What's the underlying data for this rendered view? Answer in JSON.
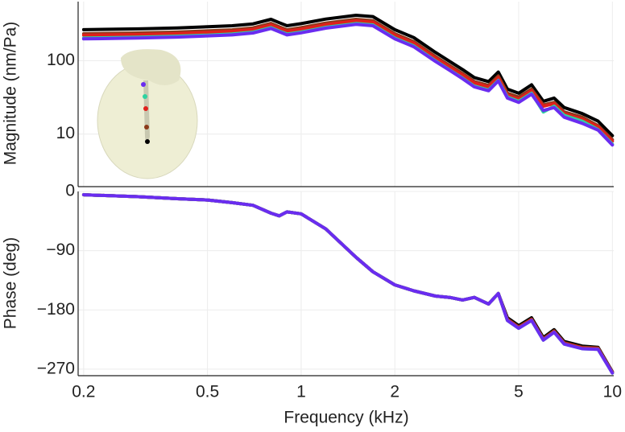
{
  "chart_data": [
    {
      "type": "line",
      "ylabel": "Magnitude (nm/Pa)",
      "xscale": "log",
      "yscale": "log",
      "grid": true,
      "xlim": [
        0.192,
        10.1
      ],
      "ylim": [
        1.92,
        640
      ],
      "yticks": [
        10,
        100
      ],
      "x": [
        0.2,
        0.3,
        0.4,
        0.5,
        0.6,
        0.7,
        0.8,
        0.85,
        0.9,
        1,
        1.2,
        1.5,
        1.7,
        2,
        2.3,
        2.7,
        3,
        3.3,
        3.6,
        4,
        4.3,
        4.6,
        5,
        5.5,
        6,
        6.5,
        7,
        8,
        9,
        10
      ],
      "series": [
        {
          "color": "#000000",
          "values": [
            265,
            272,
            280,
            290,
            300,
            318,
            367,
            330,
            300,
            320,
            370,
            417,
            400,
            265,
            207,
            130,
            98,
            76,
            59,
            52,
            70,
            41,
            36,
            47,
            28,
            31,
            23,
            19,
            15,
            9.5
          ]
        },
        {
          "color": "#8b3a1a",
          "values": [
            233,
            239,
            246,
            255,
            264,
            280,
            323,
            290,
            264,
            282,
            326,
            367,
            352,
            233,
            182,
            114,
            86,
            67,
            52,
            46,
            62,
            36,
            32,
            41,
            25,
            27,
            20,
            17,
            13,
            8.4
          ]
        },
        {
          "color": "#e0201c",
          "values": [
            223,
            228,
            235,
            244,
            252,
            267,
            308,
            277,
            252,
            269,
            311,
            350,
            336,
            223,
            174,
            109,
            82,
            64,
            50,
            44,
            59,
            34,
            30,
            39,
            24,
            26,
            19,
            16,
            12.6,
            8.0
          ]
        },
        {
          "color": "#2ed3a0",
          "values": [
            204,
            209,
            216,
            223,
            231,
            245,
            283,
            254,
            231,
            246,
            285,
            321,
            308,
            204,
            159,
            100,
            75,
            58,
            45,
            40,
            54,
            32,
            28,
            36,
            20,
            24,
            18,
            15,
            11.5,
            7.3
          ]
        },
        {
          "color": "#6a2cf0",
          "values": [
            199,
            204,
            210,
            218,
            225,
            239,
            275,
            248,
            225,
            240,
            278,
            313,
            300,
            199,
            155,
            98,
            74,
            57,
            44,
            39,
            53,
            31,
            27,
            35,
            21,
            23,
            17,
            14,
            11.3,
            7.1
          ]
        }
      ]
    },
    {
      "type": "line",
      "ylabel": "Phase (deg)",
      "xlabel": "Frequency (kHz)",
      "xscale": "log",
      "grid": true,
      "xlim": [
        0.192,
        10.1
      ],
      "xticks": [
        0.2,
        0.5,
        1,
        2,
        5,
        10
      ],
      "ylim": [
        -280,
        0
      ],
      "yticks": [
        0,
        {
          "value": -90,
          "label": "−90"
        },
        {
          "value": -180,
          "label": "−180"
        },
        {
          "value": -270,
          "label": "−270"
        }
      ],
      "x": [
        0.2,
        0.3,
        0.4,
        0.5,
        0.6,
        0.7,
        0.8,
        0.85,
        0.9,
        1,
        1.2,
        1.5,
        1.7,
        2,
        2.3,
        2.7,
        3,
        3.3,
        3.6,
        4,
        4.3,
        4.6,
        5,
        5.5,
        6,
        6.5,
        7,
        8,
        9,
        10
      ],
      "series": [
        {
          "color": "#000000",
          "values": [
            -5,
            -8,
            -11,
            -13,
            -17,
            -21,
            -33,
            -37,
            -31,
            -34,
            -57,
            -100,
            -122,
            -142,
            -151,
            -159,
            -161,
            -165,
            -161,
            -171,
            -155,
            -192,
            -204,
            -192,
            -222,
            -210,
            -228,
            -235,
            -237,
            -274
          ]
        },
        {
          "color": "#8b3a1a",
          "values": [
            -5,
            -8,
            -11,
            -13,
            -17,
            -21,
            -33,
            -37,
            -31,
            -34,
            -57,
            -100,
            -122,
            -142,
            -151,
            -159,
            -161,
            -165,
            -161,
            -171,
            -155,
            -194,
            -206,
            -194,
            -224,
            -212,
            -230,
            -237,
            -238,
            -275
          ]
        },
        {
          "color": "#e0201c",
          "values": [
            -5,
            -8,
            -11,
            -13,
            -17,
            -21,
            -33,
            -37,
            -31,
            -34,
            -57,
            -100,
            -122,
            -142,
            -151,
            -159,
            -161,
            -165,
            -161,
            -171,
            -155,
            -195,
            -207,
            -195,
            -225,
            -213,
            -231,
            -238,
            -239,
            -275
          ]
        },
        {
          "color": "#2ed3a0",
          "values": [
            -5,
            -8,
            -11,
            -13,
            -17,
            -21,
            -33,
            -37,
            -31,
            -34,
            -57,
            -100,
            -122,
            -142,
            -151,
            -159,
            -161,
            -165,
            -161,
            -171,
            -155,
            -196,
            -208,
            -196,
            -226,
            -214,
            -232,
            -239,
            -240,
            -276
          ]
        },
        {
          "color": "#6a2cf0",
          "values": [
            -5,
            -8,
            -11,
            -13,
            -17,
            -21,
            -33,
            -37,
            -31,
            -34,
            -57,
            -100,
            -122,
            -142,
            -151,
            -159,
            -161,
            -165,
            -161,
            -171,
            -155,
            -196,
            -208,
            -196,
            -226,
            -214,
            -232,
            -239,
            -240,
            -276
          ]
        }
      ]
    }
  ]
}
